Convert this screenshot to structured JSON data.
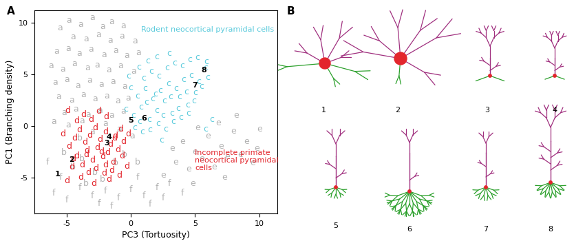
{
  "panel_labels": [
    "A",
    "B"
  ],
  "chart_data": {
    "type": "scatter",
    "xlabel": "PC3 (Tortuosity)",
    "ylabel": "PC1 (Branching density)",
    "xlim": [
      -7.5,
      11.4
    ],
    "ylim": [
      -8.5,
      11.2
    ],
    "xticks": [
      -5,
      0,
      5,
      10
    ],
    "yticks": [
      -5,
      0,
      5,
      10
    ],
    "marker": "letter",
    "series": [
      {
        "name": "a",
        "color": "#b3b3b3",
        "x": [
          -5.5,
          -4.8,
          -3.9,
          -3.0,
          -2.2,
          -1.5,
          -0.6,
          -4.5,
          -3.5,
          -2.5,
          -1.6,
          -0.7,
          0.3,
          -5.8,
          -4.9,
          -4.0,
          -3.1,
          -2.1,
          -1.2,
          -0.3,
          0.6,
          -6.2,
          -5.3,
          -4.4,
          -3.4,
          -2.6,
          -1.7,
          -0.8,
          0.2,
          -5.9,
          -5.0,
          -4.1,
          -3.2,
          -2.3,
          -1.4,
          -0.5,
          -5.6,
          -4.6,
          -3.7,
          -2.8,
          -1.9,
          -1.0,
          -0.2,
          -5.2,
          -4.3,
          -3.3,
          -2.4,
          -1.5,
          -0.6,
          -6.0,
          -4.9,
          -3.8,
          -2.0,
          -0.9,
          0.1,
          -3.0
        ],
        "y": [
          9.5,
          10.2,
          9.8,
          10.5,
          9.6,
          10.1,
          9.7,
          8.6,
          8.4,
          8.8,
          8.3,
          8.7,
          8.2,
          7.2,
          7.5,
          7.0,
          7.4,
          6.9,
          7.3,
          6.8,
          7.1,
          5.8,
          5.5,
          6.0,
          5.6,
          5.9,
          5.4,
          5.8,
          5.3,
          4.2,
          4.5,
          3.9,
          4.4,
          4.0,
          4.3,
          3.8,
          2.8,
          2.5,
          3.0,
          2.6,
          2.9,
          2.4,
          2.7,
          1.3,
          1.6,
          1.1,
          1.5,
          1.0,
          1.4,
          0.4,
          0.1,
          0.5,
          0.2,
          -0.3,
          -1.0,
          -0.6
        ]
      },
      {
        "name": "b",
        "color": "#b3b3b3",
        "x": [
          -4.5,
          -3.8,
          -5.2,
          -2.8,
          -1.2,
          -3.5,
          -0.5,
          -2.2,
          0.5,
          -4.0
        ],
        "y": [
          -4.0,
          -3.2,
          -2.6,
          -4.5,
          -3.6,
          -5.6,
          -2.8,
          -5.2,
          -3.5,
          -1.2
        ]
      },
      {
        "name": "e",
        "color": "#b3b3b3",
        "x": [
          4.0,
          5.0,
          6.0,
          7.0,
          8.0,
          9.0,
          10.0,
          3.5,
          4.5,
          5.5,
          6.5,
          7.5,
          8.5,
          9.5,
          6.8,
          8.2,
          5.2,
          3.2,
          7.3,
          4.8,
          2.5,
          9.8
        ],
        "y": [
          -1.5,
          -2.5,
          -1.0,
          -2.0,
          -0.5,
          -1.5,
          -0.3,
          -3.5,
          -4.2,
          -3.2,
          -4.0,
          -3.0,
          -2.8,
          -3.6,
          0.3,
          1.0,
          -0.2,
          -2.2,
          -5.0,
          -5.6,
          -4.8,
          -2.2
        ]
      },
      {
        "name": "f",
        "color": "#b3b3b3",
        "x": [
          -6.0,
          -5.0,
          -4.0,
          -3.0,
          -2.0,
          -1.0,
          0.0,
          1.0,
          2.0,
          3.0,
          -5.5,
          -1.5,
          0.5,
          2.5,
          4.0,
          -6.5,
          -2.5,
          1.5
        ],
        "y": [
          -6.5,
          -7.2,
          -6.0,
          -6.8,
          -6.3,
          -7.0,
          -6.2,
          -6.8,
          -6.0,
          -5.6,
          -5.0,
          -7.8,
          -5.0,
          -7.0,
          -6.5,
          -3.5,
          -7.5,
          -7.6
        ]
      },
      {
        "name": "c",
        "color": "#5ccbdc",
        "x": [
          0.2,
          0.8,
          1.4,
          2.0,
          2.6,
          3.2,
          3.8,
          4.4,
          5.0,
          0.5,
          1.1,
          1.7,
          2.3,
          2.9,
          3.5,
          4.1,
          4.7,
          5.3,
          5.8,
          1.0,
          1.6,
          2.2,
          2.8,
          3.4,
          4.0,
          4.6,
          5.2,
          5.9,
          0.0,
          -0.4,
          0.3,
          0.9,
          1.5,
          2.1,
          2.7,
          3.3,
          3.9,
          4.5,
          1.2,
          1.9,
          2.5,
          3.1,
          3.7,
          4.3,
          4.9,
          5.5,
          6.0,
          0.6,
          1.3,
          2.0,
          -0.2,
          3.0,
          5.8,
          6.3,
          2.4,
          0.7
        ],
        "y": [
          1.0,
          1.8,
          0.6,
          1.5,
          2.4,
          1.2,
          2.8,
          2.0,
          3.2,
          2.9,
          3.6,
          2.6,
          3.4,
          4.1,
          3.6,
          4.5,
          4.9,
          4.3,
          5.6,
          4.6,
          5.3,
          4.8,
          5.6,
          6.1,
          5.8,
          6.4,
          6.6,
          6.2,
          3.7,
          1.6,
          -0.2,
          -0.6,
          -0.4,
          0.2,
          -0.3,
          0.4,
          0.8,
          1.2,
          2.3,
          3.1,
          1.0,
          2.8,
          1.7,
          3.3,
          2.4,
          3.8,
          4.7,
          5.7,
          6.3,
          6.7,
          4.8,
          7.0,
          -0.3,
          0.6,
          -1.4,
          0.4
        ]
      },
      {
        "name": "d",
        "color": "#e3262d",
        "x": [
          -5.0,
          -4.6,
          -4.2,
          -3.8,
          -3.4,
          -3.0,
          -2.6,
          -2.2,
          -1.8,
          -1.4,
          -1.0,
          -0.6,
          -4.8,
          -4.4,
          -4.0,
          -3.6,
          -3.2,
          -2.8,
          -2.4,
          -2.0,
          -1.6,
          -1.2,
          -0.8,
          -4.2,
          -3.7,
          -3.1,
          -2.5,
          -1.9,
          -4.9,
          -3.3,
          -2.7,
          -2.1,
          -1.5,
          -0.9,
          -3.9,
          -2.9,
          -1.7,
          -0.3,
          -2.3,
          -3.5,
          -0.7,
          -1.3,
          -0.2,
          -4.5,
          -5.3,
          -2.0
        ],
        "y": [
          -5.3,
          -4.0,
          -2.9,
          -3.8,
          -2.4,
          -3.3,
          -2.1,
          -3.0,
          -2.6,
          -3.5,
          -2.3,
          -1.5,
          -2.0,
          -1.2,
          -0.4,
          -1.6,
          -0.9,
          -0.2,
          -1.3,
          -0.6,
          -1.8,
          -1.0,
          -0.3,
          0.5,
          1.1,
          0.6,
          1.4,
          0.9,
          1.5,
          -4.5,
          -4.1,
          -4.6,
          -4.3,
          -4.8,
          -5.0,
          -5.6,
          -5.2,
          -3.9,
          -2.5,
          -2.8,
          -2.9,
          -1.2,
          -0.8,
          -3.2,
          -0.8,
          -3.8
        ]
      }
    ],
    "labeled_points": {
      "labels": [
        "1",
        "2",
        "3",
        "4",
        "5",
        "6",
        "7",
        "8"
      ],
      "x": [
        -5.7,
        -4.6,
        -1.9,
        -1.7,
        0.0,
        1.0,
        5.0,
        5.7
      ],
      "y": [
        -4.7,
        -3.3,
        -1.7,
        -1.1,
        0.5,
        0.7,
        3.9,
        5.4
      ]
    },
    "annotations": [
      {
        "text": "Rodent neocortical pyramidal cells",
        "color": "#5ccbdc"
      },
      {
        "text": "Incomplete primate\nneocortical pyramidal\ncells",
        "color": "#e3262d"
      }
    ]
  }
}
